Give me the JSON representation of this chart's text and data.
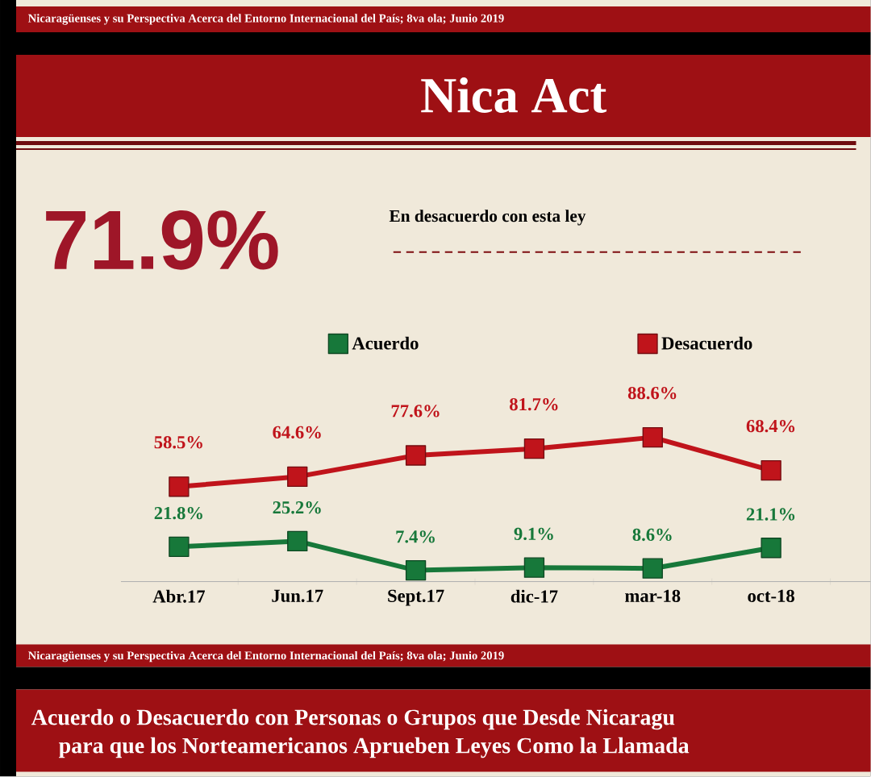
{
  "chart_data": {
    "type": "line",
    "title": "Nica Act",
    "categories": [
      "Abr.17",
      "Jun.17",
      "Sept.17",
      "dic-17",
      "mar-18",
      "oct-18"
    ],
    "series": [
      {
        "name": "Acuerdo",
        "color": "#17783a",
        "values": [
          21.8,
          25.2,
          7.4,
          9.1,
          8.6,
          21.1
        ],
        "value_labels": [
          "21.8%",
          "25.2%",
          "7.4%",
          "9.1%",
          "8.6%",
          "21.1%"
        ]
      },
      {
        "name": "Desacuerdo",
        "color": "#c0141b",
        "values": [
          58.5,
          64.6,
          77.6,
          81.7,
          88.6,
          68.4
        ],
        "value_labels": [
          "58.5%",
          "64.6%",
          "77.6%",
          "81.7%",
          "88.6%",
          "68.4%"
        ]
      }
    ],
    "legend": "top",
    "marker": "square",
    "line_style": "solid",
    "annotations": [
      "Nicaragüenses y su Perspectiva Acerca del Entorno Internacional del País; 8va ola; Junio 2019",
      "71.9%",
      "En **desacuerdo** con esta ley",
      "Nicaragüenses y su Perspectiva Acerca del Entorno Internacional del País; 8va ola; Junio 2019",
      "Acuerdo o Desacuerdo con Personas o Grupos que Desde Nicaragu",
      "para que los Norteamericanos Aprueben Leyes Como la Llamada"
    ]
  }
}
